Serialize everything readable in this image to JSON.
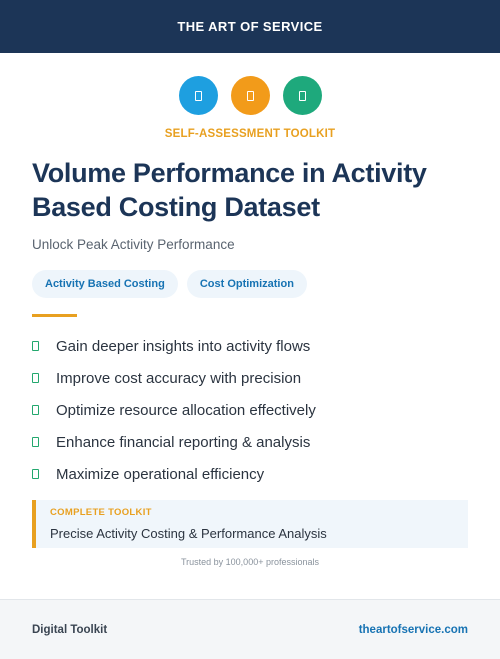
{
  "header": {
    "brand": "THE ART OF SERVICE"
  },
  "icons": [
    {
      "name": "clipboard-icon",
      "color": "#1e9fe0"
    },
    {
      "name": "document-icon",
      "color": "#f29b1a"
    },
    {
      "name": "checklist-icon",
      "color": "#1ea97c"
    }
  ],
  "kicker": "SELF-ASSESSMENT TOOLKIT",
  "title": "Volume Performance in Activity Based Costing Dataset",
  "subtitle": "Unlock Peak Activity Performance",
  "tags": [
    "Activity Based Costing",
    "Cost Optimization"
  ],
  "benefits": [
    "Gain deeper insights into activity flows",
    "Improve cost accuracy with precision",
    "Optimize resource allocation effectively",
    "Enhance financial reporting & analysis",
    "Maximize operational efficiency"
  ],
  "callout": {
    "kicker": "COMPLETE TOOLKIT",
    "text": "Precise Activity Costing & Performance Analysis"
  },
  "trust": "Trusted by 100,000+ professionals",
  "footer": {
    "left": "Digital Toolkit",
    "right": "theartofservice.com"
  },
  "colors": {
    "navy": "#1c3557",
    "accent": "#e8a020",
    "check": "#23a86e",
    "link": "#1773b3"
  }
}
